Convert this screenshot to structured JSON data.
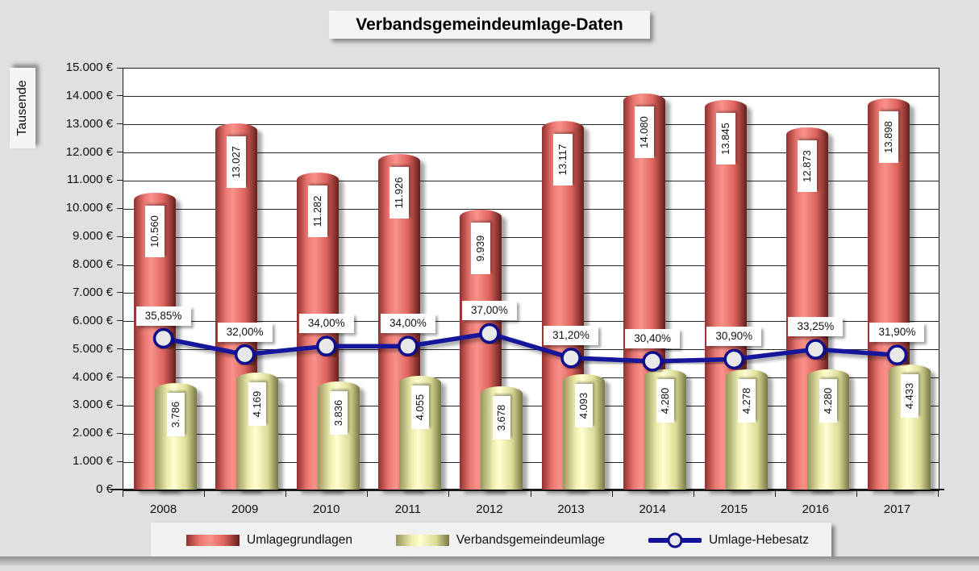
{
  "chart_data": {
    "type": "bar+line",
    "title": "Verbandsgemeindeumlage-Daten",
    "ylabel": "Tausende",
    "xlabel": "",
    "categories": [
      "2008",
      "2009",
      "2010",
      "2011",
      "2012",
      "2013",
      "2014",
      "2015",
      "2016",
      "2017"
    ],
    "series": [
      {
        "name": "Umlagegrundlagen",
        "type": "bar",
        "color": "#e9716c",
        "values": [
          10560,
          13027,
          11282,
          11926,
          9939,
          13117,
          14080,
          13845,
          12873,
          13898
        ],
        "labels": [
          "10.560",
          "13.027",
          "11.282",
          "11.926",
          "9.939",
          "13.117",
          "14.080",
          "13.845",
          "12.873",
          "13.898"
        ]
      },
      {
        "name": "Verbandsgemeindeumlage",
        "type": "bar",
        "color": "#ffffcc",
        "values": [
          3786,
          4169,
          3836,
          4055,
          3678,
          4093,
          4280,
          4278,
          4280,
          4433
        ],
        "labels": [
          "3.786",
          "4.169",
          "3.836",
          "4.055",
          "3.678",
          "4.093",
          "4.280",
          "4.278",
          "4.280",
          "4.433"
        ]
      },
      {
        "name": "Umlage-Hebesatz",
        "type": "line",
        "color": "#13139b",
        "values": [
          35.85,
          32.0,
          34.0,
          34.0,
          37.0,
          31.2,
          30.4,
          30.9,
          33.25,
          31.9
        ],
        "labels": [
          "35,85%",
          "32,00%",
          "34,00%",
          "34,00%",
          "37,00%",
          "31,20%",
          "30,40%",
          "30,90%",
          "33,25%",
          "31,90%"
        ]
      }
    ],
    "y_ticks": [
      "15.000 €",
      "14.000 €",
      "13.000 €",
      "12.000 €",
      "11.000 €",
      "10.000 €",
      "9.000 €",
      "8.000 €",
      "7.000 €",
      "6.000 €",
      "5.000 €",
      "4.000 €",
      "3.000 €",
      "2.000 €",
      "1.000 €",
      "0 €"
    ],
    "ylim": [
      0,
      15000
    ],
    "y2lim": [
      0,
      100
    ],
    "grid": true,
    "legend_position": "bottom",
    "colors": {
      "background": "#e0e0e0",
      "plot_background": "#ffffff",
      "bar1_center": "#f8928b",
      "bar1_edge": "#93302e",
      "bar2_center": "#ffffd2",
      "bar2_edge": "#96965e",
      "line": "#13139b",
      "marker_fill": "#e8e8e8",
      "marker_border": "#10108e"
    }
  }
}
